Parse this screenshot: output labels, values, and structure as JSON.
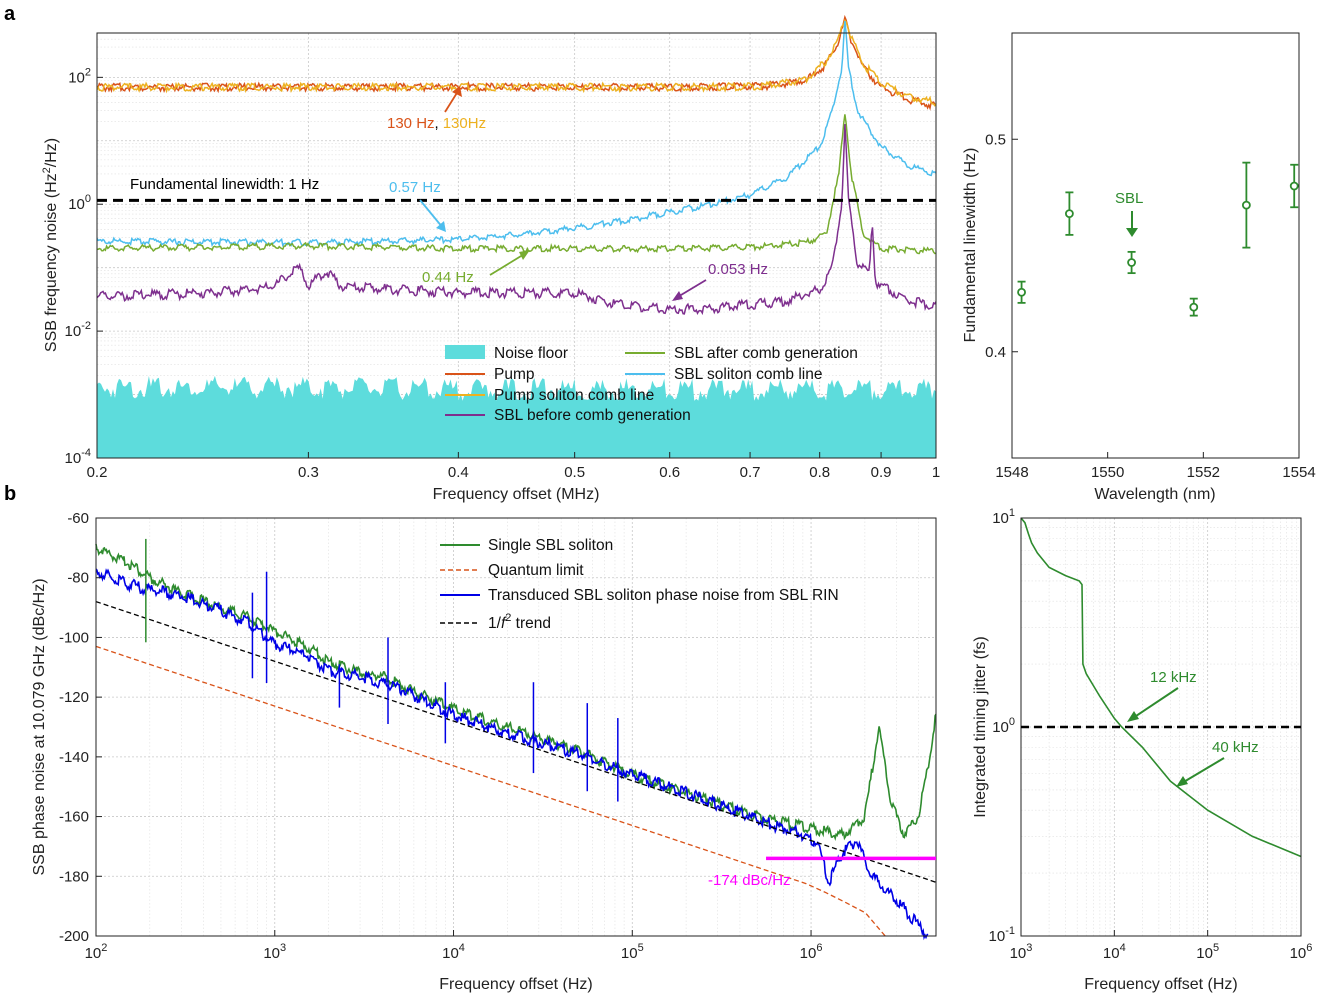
{
  "figure": {
    "label_a": "a",
    "label_b": "b"
  },
  "chart_data": [
    {
      "id": "a_left",
      "type": "line",
      "xlabel": "Frequency offset (MHz)",
      "ylabel_parts": [
        "SSB frequency noise (Hz",
        "2",
        "/Hz)"
      ],
      "x_scale": "log",
      "y_scale": "log",
      "xlim": [
        0.2,
        1
      ],
      "ylim": [
        0.0001,
        500
      ],
      "x_ticks": [
        0.2,
        0.3,
        0.4,
        0.5,
        0.6,
        0.7,
        0.8,
        0.9,
        1
      ],
      "x_tick_labels": [
        "0.2",
        "0.3",
        "0.4",
        "0.5",
        "0.6",
        "0.7",
        "0.8",
        "0.9",
        "1"
      ],
      "y_ticks": [
        0.0001,
        0.01,
        1,
        100
      ],
      "y_tick_labels": [
        [
          "10",
          "-4"
        ],
        [
          "10",
          "-2"
        ],
        [
          "10",
          "0"
        ],
        [
          "10",
          "2"
        ]
      ],
      "grid": true,
      "legend_position": "bottom-center",
      "legend": [
        {
          "name": "Noise floor",
          "color": "#5ddcdc",
          "kind": "patch"
        },
        {
          "name": "Pump",
          "color": "#d95319",
          "kind": "line"
        },
        {
          "name": "Pump soliton comb line",
          "color": "#edb120",
          "kind": "line"
        },
        {
          "name": "SBL before comb generation",
          "color": "#7e2f8e",
          "kind": "line"
        },
        {
          "name": "SBL after comb generation",
          "color": "#77ac30",
          "kind": "line"
        },
        {
          "name": "SBL soliton comb line",
          "color": "#4dbeee",
          "kind": "line"
        }
      ],
      "series": [
        {
          "name": "Noise floor",
          "color": "#5ddcdc",
          "x": [
            0.2,
            0.3,
            0.4,
            0.5,
            0.6,
            0.7,
            0.8,
            0.9,
            1.0
          ],
          "y": [
            0.0013,
            0.0013,
            0.0012,
            0.0012,
            0.0012,
            0.0012,
            0.0012,
            0.0012,
            0.0012
          ]
        },
        {
          "name": "Pump",
          "color": "#d95319",
          "x": [
            0.2,
            0.4,
            0.6,
            0.72,
            0.78,
            0.81,
            0.83,
            0.84,
            0.85,
            0.87,
            0.9,
            0.95,
            1.0
          ],
          "y": [
            70,
            70,
            70,
            72,
            90,
            160,
            380,
            800,
            380,
            140,
            70,
            45,
            35
          ]
        },
        {
          "name": "Pump soliton comb line",
          "color": "#edb120",
          "x": [
            0.2,
            0.4,
            0.6,
            0.72,
            0.78,
            0.81,
            0.83,
            0.84,
            0.85,
            0.87,
            0.9,
            0.95,
            1.0
          ],
          "y": [
            70,
            70,
            70,
            72,
            95,
            180,
            420,
            900,
            420,
            160,
            80,
            50,
            40
          ]
        },
        {
          "name": "SBL soliton comb line",
          "color": "#4dbeee",
          "x": [
            0.2,
            0.3,
            0.35,
            0.4,
            0.45,
            0.5,
            0.55,
            0.6,
            0.65,
            0.7,
            0.75,
            0.8,
            0.82,
            0.835,
            0.84,
            0.845,
            0.86,
            0.9,
            0.95,
            1.0
          ],
          "y": [
            0.26,
            0.25,
            0.26,
            0.28,
            0.33,
            0.42,
            0.55,
            0.75,
            1.0,
            1.4,
            2.6,
            8,
            30,
            150,
            800,
            150,
            30,
            8,
            4,
            3
          ]
        },
        {
          "name": "SBL after comb generation",
          "color": "#77ac30",
          "x": [
            0.2,
            0.3,
            0.4,
            0.5,
            0.6,
            0.7,
            0.78,
            0.81,
            0.83,
            0.84,
            0.85,
            0.87,
            0.9,
            1.0
          ],
          "y": [
            0.2,
            0.22,
            0.2,
            0.2,
            0.2,
            0.21,
            0.25,
            0.33,
            3,
            30,
            3,
            0.33,
            0.2,
            0.18
          ]
        },
        {
          "name": "SBL before comb generation",
          "color": "#7e2f8e",
          "x": [
            0.2,
            0.25,
            0.28,
            0.295,
            0.3,
            0.31,
            0.32,
            0.4,
            0.5,
            0.55,
            0.6,
            0.65,
            0.7,
            0.75,
            0.8,
            0.82,
            0.835,
            0.84,
            0.845,
            0.86,
            0.88,
            0.885,
            0.89,
            0.95,
            1.0
          ],
          "y": [
            0.035,
            0.04,
            0.05,
            0.1,
            0.05,
            0.09,
            0.05,
            0.04,
            0.04,
            0.025,
            0.022,
            0.023,
            0.026,
            0.03,
            0.045,
            0.1,
            1.2,
            20,
            1.2,
            0.12,
            0.08,
            0.55,
            0.06,
            0.03,
            0.025
          ]
        }
      ],
      "reference_line": {
        "y": 1.15,
        "label": "Fundamental linewidth: 1 Hz",
        "color": "#000000"
      },
      "annotations": [
        {
          "text": "130 Hz",
          "color": "#d95319"
        },
        {
          "text": ",",
          "color": "#000000"
        },
        {
          "text": "130Hz",
          "color": "#edb120"
        },
        {
          "text": "0.57 Hz",
          "color": "#4dbeee"
        },
        {
          "text": "0.44 Hz",
          "color": "#77ac30"
        },
        {
          "text": "0.053 Hz",
          "color": "#7e2f8e"
        }
      ]
    },
    {
      "id": "a_right",
      "type": "scatter",
      "xlabel": "Wavelength (nm)",
      "ylabel": "Fundamental linewidth (Hz)",
      "xlim": [
        1548,
        1554
      ],
      "ylim": [
        0.35,
        0.55
      ],
      "x_ticks": [
        1548,
        1550,
        1552,
        1554
      ],
      "y_ticks": [
        0.4,
        0.5
      ],
      "y_tick_labels": [
        "0.4",
        "0.5"
      ],
      "color": "#2e8b2e",
      "points": [
        {
          "x": 1548.2,
          "y": 0.428,
          "err": 0.005
        },
        {
          "x": 1549.2,
          "y": 0.465,
          "err": 0.01
        },
        {
          "x": 1550.5,
          "y": 0.442,
          "err": 0.005
        },
        {
          "x": 1551.8,
          "y": 0.421,
          "err": 0.004
        },
        {
          "x": 1552.9,
          "y": 0.469,
          "err": 0.02
        },
        {
          "x": 1553.9,
          "y": 0.478,
          "err": 0.01
        }
      ],
      "annotation": {
        "text": "SBL"
      }
    },
    {
      "id": "b_left",
      "type": "line",
      "xlabel": "Frequency offset (Hz)",
      "ylabel": "SSB phase noise at 10.079 GHz (dBc/Hz)",
      "x_scale": "log",
      "xlim": [
        100,
        5000000
      ],
      "ylim": [
        -200,
        -60
      ],
      "x_ticks": [
        100,
        1000,
        10000,
        100000,
        1000000
      ],
      "x_tick_labels": [
        [
          "10",
          "2"
        ],
        [
          "10",
          "3"
        ],
        [
          "10",
          "4"
        ],
        [
          "10",
          "5"
        ],
        [
          "10",
          "6"
        ]
      ],
      "y_ticks": [
        -200,
        -180,
        -160,
        -140,
        -120,
        -100,
        -80,
        -60
      ],
      "y_tick_labels": [
        "-200",
        "-180",
        "-160",
        "-140",
        "-120",
        "-100",
        "-80",
        "-60"
      ],
      "grid": true,
      "legend_position": "top-right",
      "legend": [
        {
          "name": "Single SBL soliton",
          "color": "#2e8b2e",
          "dash": "solid"
        },
        {
          "name": "Quantum limit",
          "color": "#d95319",
          "dash": "dashed"
        },
        {
          "name": "Transduced SBL soliton phase noise from SBL RIN",
          "color": "#0000e6",
          "dash": "solid"
        },
        {
          "name_parts": [
            "1/",
            "f",
            "2",
            " trend"
          ],
          "color": "#000000",
          "dash": "dashed"
        }
      ],
      "series": [
        {
          "name": "Single SBL soliton",
          "color": "#2e8b2e",
          "x": [
            100,
            150,
            200,
            300,
            500,
            700,
            1000,
            1500,
            2000,
            3000,
            4000,
            6000,
            10000,
            20000,
            50000,
            100000,
            200000,
            500000,
            1000000,
            1500000,
            2000000,
            2400000,
            2800000,
            3300000,
            4000000,
            4600000,
            5000000
          ],
          "y": [
            -70,
            -75,
            -80,
            -85,
            -90,
            -93,
            -98,
            -103,
            -108,
            -112,
            -113,
            -118,
            -124,
            -130,
            -138,
            -146,
            -152,
            -160,
            -164,
            -166,
            -160,
            -130,
            -155,
            -166,
            -160,
            -140,
            -126
          ]
        },
        {
          "name": "Quantum limit",
          "color": "#d95319",
          "x": [
            100,
            1000,
            10000,
            100000,
            1000000,
            2000000,
            2600000
          ],
          "y": [
            -103,
            -123,
            -143,
            -163,
            -183,
            -192,
            -200
          ]
        },
        {
          "name": "Transduced SBL soliton phase noise from SBL RIN",
          "color": "#0000e6",
          "x": [
            100,
            150,
            200,
            300,
            500,
            700,
            1000,
            1500,
            2000,
            3000,
            5000,
            10000,
            20000,
            50000,
            100000,
            200000,
            500000,
            900000,
            1100000,
            1250000,
            1500000,
            1800000,
            2200000,
            3000000,
            4500000
          ],
          "y": [
            -78,
            -82,
            -84,
            -86,
            -91,
            -95,
            -102,
            -106,
            -111,
            -113,
            -117,
            -126,
            -132,
            -139,
            -146,
            -152,
            -161,
            -166,
            -169,
            -182,
            -172,
            -168,
            -180,
            -188,
            -200
          ]
        },
        {
          "name": "1/f2 trend",
          "color": "#000000",
          "x": [
            100,
            5000000
          ],
          "y": [
            -88,
            -182
          ]
        }
      ],
      "marker_line": {
        "x_start": 560000,
        "x_end": 5000000,
        "y": -174,
        "label": "-174 dBc/Hz",
        "color": "#ff00ff"
      }
    },
    {
      "id": "b_right",
      "type": "line",
      "xlabel": "Frequency offset (Hz)",
      "ylabel": "Integrated timing jitter (fs)",
      "x_scale": "log",
      "y_scale": "log",
      "xlim": [
        1000,
        1000000
      ],
      "ylim": [
        0.1,
        10
      ],
      "x_ticks": [
        1000,
        10000,
        100000,
        1000000
      ],
      "x_tick_labels": [
        [
          "10",
          "3"
        ],
        [
          "10",
          "4"
        ],
        [
          "10",
          "5"
        ],
        [
          "10",
          "6"
        ]
      ],
      "y_ticks": [
        0.1,
        1,
        10
      ],
      "y_tick_labels": [
        [
          "10",
          "-1"
        ],
        [
          "10",
          "0"
        ],
        [
          "10",
          "1"
        ]
      ],
      "grid": true,
      "series": [
        {
          "name": "Integrated timing jitter",
          "color": "#2e8b2e",
          "x": [
            1000,
            1100,
            1200,
            1300,
            1500,
            2000,
            3000,
            4200,
            4500,
            4600,
            5000,
            7000,
            10000,
            12000,
            20000,
            40000,
            100000,
            300000,
            1000000
          ],
          "y": [
            10,
            9.5,
            8.4,
            7.6,
            6.8,
            5.8,
            5.3,
            5.0,
            4.8,
            2.0,
            1.8,
            1.4,
            1.1,
            1.0,
            0.8,
            0.55,
            0.4,
            0.3,
            0.24
          ]
        }
      ],
      "reference_line": {
        "y": 1.0,
        "color": "#000000"
      },
      "annotations": [
        {
          "text": "12 kHz"
        },
        {
          "text": "40 kHz"
        }
      ]
    }
  ]
}
